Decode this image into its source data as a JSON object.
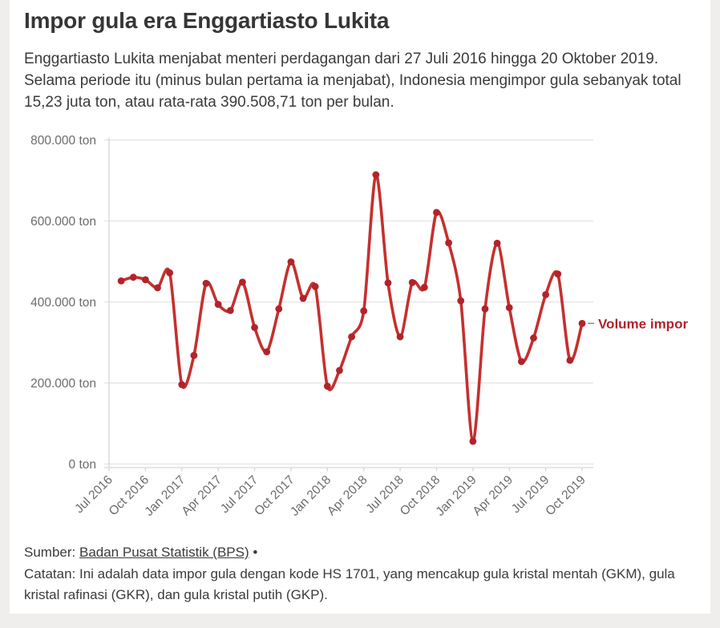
{
  "page": {
    "title": "Impor gula era Enggartiasto Lukita",
    "subtitle": "Enggartiasto Lukita menjabat menteri perdagangan dari 27 Juli 2016 hingga 20 Oktober 2019. Selama periode itu (minus bulan pertama ia menjabat), Indonesia mengimpor gula sebanyak total 15,23 juta ton, atau rata-rata 390.508,71 ton per bulan."
  },
  "footer": {
    "source_prefix": "Sumber: ",
    "source_link": "Badan Pusat Statistik (BPS)",
    "source_suffix": " •",
    "note": "Catatan: Ini adalah data impor gula dengan kode HS 1701, yang mencakup gula kristal mentah (GKM), gula kristal rafinasi (GKR), dan gula kristal putih (GKP)."
  },
  "colors": {
    "line": "#c5302e",
    "dot": "#b2232a",
    "legend_text": "#b2232a",
    "grid": "#e4e4e4",
    "axis": "#d6d6d6",
    "axis_text": "#6b6b6b",
    "card_bg": "#ffffff",
    "page_bg": "#efeeec"
  },
  "chart_data": {
    "type": "line",
    "series_name": "Volume impor",
    "unit": "ton",
    "legend_label": "Volume impor",
    "legend_position": "right-of-last-point",
    "grid": "horizontal",
    "ylim": [
      0,
      800000
    ],
    "y_ticks": [
      0,
      200000,
      400000,
      600000,
      800000
    ],
    "y_tick_labels": [
      "0 ton",
      "200.000 ton",
      "400.000 ton",
      "600.000 ton",
      "800.000 ton"
    ],
    "x_axis_start": "Jul 2016",
    "x_tick_labels": [
      "Jul 2016",
      "Oct 2016",
      "Jan 2017",
      "Apr 2017",
      "Jul 2017",
      "Oct 2017",
      "Jan 2018",
      "Apr 2018",
      "Jul 2018",
      "Oct 2018",
      "Jan 2019",
      "Apr 2019",
      "Jul 2019",
      "Oct 2019"
    ],
    "x": [
      "Aug 2016",
      "Sep 2016",
      "Oct 2016",
      "Nov 2016",
      "Dec 2016",
      "Jan 2017",
      "Feb 2017",
      "Mar 2017",
      "Apr 2017",
      "May 2017",
      "Jun 2017",
      "Jul 2017",
      "Aug 2017",
      "Sep 2017",
      "Oct 2017",
      "Nov 2017",
      "Dec 2017",
      "Jan 2018",
      "Feb 2018",
      "Mar 2018",
      "Apr 2018",
      "May 2018",
      "Jun 2018",
      "Jul 2018",
      "Aug 2018",
      "Sep 2018",
      "Oct 2018",
      "Nov 2018",
      "Dec 2018",
      "Jan 2019",
      "Feb 2019",
      "Mar 2019",
      "Apr 2019",
      "May 2019",
      "Jun 2019",
      "Jul 2019",
      "Aug 2019",
      "Sep 2019",
      "Oct 2019"
    ],
    "values": [
      452000,
      461000,
      455000,
      435000,
      472000,
      196000,
      268000,
      446000,
      394000,
      379000,
      449000,
      337000,
      277000,
      383000,
      499000,
      409000,
      438000,
      192000,
      231000,
      314000,
      378000,
      714000,
      447000,
      314000,
      448000,
      436000,
      621000,
      546000,
      403000,
      56000,
      383000,
      545000,
      386000,
      253000,
      311000,
      418000,
      469000,
      256000,
      347000
    ]
  }
}
